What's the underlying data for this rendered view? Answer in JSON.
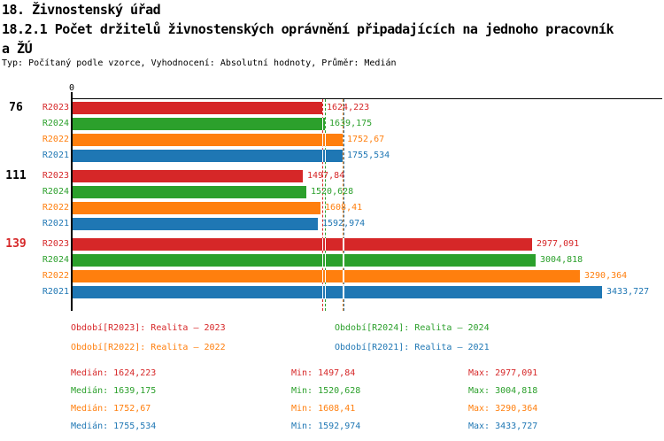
{
  "page": {
    "title_line1": "18. Živnostenský úřad",
    "title_line2": "18.2.1 Počet držitelů živnostenských oprávnění připadajících na jednoho pracovník",
    "title_line3": "a ŽÚ",
    "meta": "Typ: Počítaný podle vzorce, Vyhodnocení: Absolutní hodnoty, Průměr: Medián"
  },
  "chart_data": {
    "type": "bar",
    "orientation": "horizontal",
    "title": "18.2.1 Počet držitelů živnostenských oprávnění připadajících na jednoho pracovníka ŽÚ",
    "axis_zero_label": "0",
    "xlim": [
      0,
      3820
    ],
    "grid": false,
    "categories": [
      "76",
      "111",
      "139"
    ],
    "category_colors": [
      "#000000",
      "#000000",
      "#d62728"
    ],
    "series": [
      {
        "name": "R2023",
        "color": "#d62728",
        "legend": "Období[R2023]: Realita – 2023",
        "values": [
          1624.223,
          1497.84,
          2977.091
        ],
        "display_values": [
          "1624,223",
          "1497,84",
          "2977,091"
        ],
        "stats": {
          "median": "Medián: 1624,223",
          "min": "Min: 1497,84",
          "max": "Max: 2977,091"
        }
      },
      {
        "name": "R2024",
        "color": "#2ca02c",
        "legend": "Období[R2024]: Realita – 2024",
        "values": [
          1639.175,
          1520.628,
          3004.818
        ],
        "display_values": [
          "1639,175",
          "1520,628",
          "3004,818"
        ],
        "stats": {
          "median": "Medián: 1639,175",
          "min": "Min: 1520,628",
          "max": "Max: 3004,818"
        }
      },
      {
        "name": "R2022",
        "color": "#ff7f0e",
        "legend": "Období[R2022]: Realita – 2022",
        "values": [
          1752.67,
          1608.41,
          3290.364
        ],
        "display_values": [
          "1752,67",
          "1608,41",
          "3290,364"
        ],
        "stats": {
          "median": "Medián: 1752,67",
          "min": "Min: 1608,41",
          "max": "Max: 3290,364"
        }
      },
      {
        "name": "R2021",
        "color": "#1f77b4",
        "legend": "Období[R2021]: Realita – 2021",
        "values": [
          1755.534,
          1592.974,
          3433.727
        ],
        "display_values": [
          "1755,534",
          "1592,974",
          "3433,727"
        ],
        "stats": {
          "median": "Medián: 1755,534",
          "min": "Min: 1592,974",
          "max": "Max: 3433,727"
        }
      }
    ],
    "median_lines": [
      1624.223,
      1639.175,
      1752.67,
      1755.534
    ]
  }
}
